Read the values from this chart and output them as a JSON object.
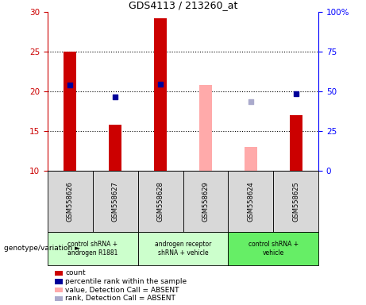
{
  "title": "GDS4113 / 213260_at",
  "samples": [
    "GSM558626",
    "GSM558627",
    "GSM558628",
    "GSM558629",
    "GSM558624",
    "GSM558625"
  ],
  "sample_bg_color": "#d8d8d8",
  "group_defs": [
    {
      "start": 0,
      "end": 1,
      "label": "control shRNA +\nandrogen R1881",
      "color": "#ccffcc"
    },
    {
      "start": 2,
      "end": 3,
      "label": "androgen receptor\nshRNA + vehicle",
      "color": "#ccffcc"
    },
    {
      "start": 4,
      "end": 5,
      "label": "control shRNA +\nvehicle",
      "color": "#66ee66"
    }
  ],
  "count_values": [
    25.0,
    15.8,
    29.2,
    null,
    null,
    17.0
  ],
  "percentile_values": [
    20.8,
    19.3,
    20.9,
    null,
    null,
    19.7
  ],
  "absent_value_values": [
    null,
    null,
    null,
    20.8,
    13.0,
    null
  ],
  "absent_rank_values": [
    null,
    null,
    null,
    null,
    18.7,
    null
  ],
  "ylim": [
    10,
    30
  ],
  "yticks": [
    10,
    15,
    20,
    25,
    30
  ],
  "y2lim": [
    0,
    100
  ],
  "y2ticks": [
    0,
    25,
    50,
    75,
    100
  ],
  "y2ticklabels": [
    "0",
    "25",
    "50",
    "75",
    "100%"
  ],
  "count_color": "#cc0000",
  "percentile_color": "#000099",
  "absent_value_color": "#ffaaaa",
  "absent_rank_color": "#aaaacc",
  "bar_width": 0.28,
  "dot_size": 22,
  "legend_items": [
    {
      "color": "#cc0000",
      "label": "count"
    },
    {
      "color": "#000099",
      "label": "percentile rank within the sample"
    },
    {
      "color": "#ffaaaa",
      "label": "value, Detection Call = ABSENT"
    },
    {
      "color": "#aaaacc",
      "label": "rank, Detection Call = ABSENT"
    }
  ]
}
